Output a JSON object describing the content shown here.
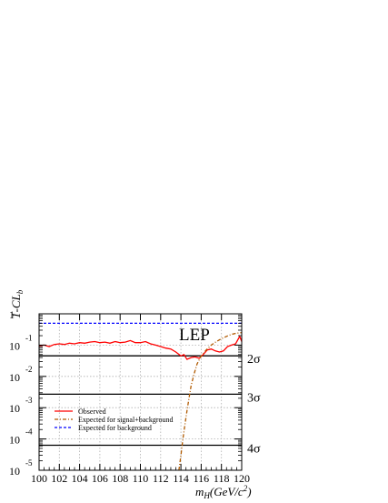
{
  "chart_data": {
    "type": "line",
    "title": "",
    "annotation": "LEP",
    "xlabel": "m_H(GeV/c^2)",
    "ylabel": "1-CL_b",
    "xlim": [
      100,
      120
    ],
    "ylim": [
      1e-05,
      1
    ],
    "y_scale": "log",
    "grid": true,
    "x_ticks": [
      "100",
      "102",
      "104",
      "106",
      "108",
      "110",
      "112",
      "114",
      "116",
      "118",
      "120"
    ],
    "y_ticks": [
      {
        "value": 1,
        "base": "1",
        "exp": ""
      },
      {
        "value": 0.1,
        "base": "10",
        "exp": "-1"
      },
      {
        "value": 0.01,
        "base": "10",
        "exp": "-2"
      },
      {
        "value": 0.001,
        "base": "10",
        "exp": "-3"
      },
      {
        "value": 0.0001,
        "base": "10",
        "exp": "-4"
      },
      {
        "value": 1e-05,
        "base": "10",
        "exp": "-5"
      }
    ],
    "sigma_lines": [
      {
        "label": "2σ",
        "value": 0.0455
      },
      {
        "label": "3σ",
        "value": 0.0027
      },
      {
        "label": "4σ",
        "value": 6.3e-05
      }
    ],
    "legend_position": "bottom-left",
    "series": [
      {
        "name": "Observed",
        "color": "#ff0000",
        "style": "solid",
        "x": [
          100,
          100.5,
          101,
          101.5,
          102,
          102.5,
          103,
          103.5,
          104,
          104.5,
          105,
          105.5,
          106,
          106.5,
          107,
          107.5,
          108,
          108.5,
          109,
          109.5,
          110,
          110.5,
          111,
          111.5,
          112,
          112.5,
          113,
          113.5,
          114,
          114.3,
          114.6,
          115,
          115.4,
          115.8,
          116.2,
          116.6,
          117,
          117.4,
          117.8,
          118.2,
          118.6,
          119,
          119.4,
          119.8,
          120
        ],
        "y": [
          0.095,
          0.1,
          0.09,
          0.105,
          0.11,
          0.105,
          0.115,
          0.11,
          0.12,
          0.115,
          0.125,
          0.13,
          0.12,
          0.125,
          0.115,
          0.13,
          0.12,
          0.125,
          0.14,
          0.12,
          0.12,
          0.13,
          0.11,
          0.1,
          0.09,
          0.08,
          0.075,
          0.06,
          0.045,
          0.05,
          0.035,
          0.04,
          0.042,
          0.038,
          0.05,
          0.07,
          0.075,
          0.065,
          0.06,
          0.065,
          0.09,
          0.1,
          0.11,
          0.19,
          0.13
        ]
      },
      {
        "name": "Expected for signal+background",
        "color": "#b05a00",
        "style": "dash-dot",
        "x": [
          113.8,
          114,
          114.2,
          114.4,
          114.6,
          114.8,
          115,
          115.3,
          115.6,
          116,
          116.5,
          117,
          117.5,
          118,
          118.5,
          119,
          119.5,
          120
        ],
        "y": [
          1e-05,
          3e-05,
          0.0001,
          0.0003,
          0.0008,
          0.002,
          0.005,
          0.012,
          0.025,
          0.045,
          0.07,
          0.1,
          0.13,
          0.16,
          0.19,
          0.22,
          0.24,
          0.25
        ]
      },
      {
        "name": "Expected for background",
        "color": "#0000ff",
        "style": "dashed",
        "x": [
          100,
          120
        ],
        "y": [
          0.5,
          0.5
        ]
      }
    ]
  }
}
